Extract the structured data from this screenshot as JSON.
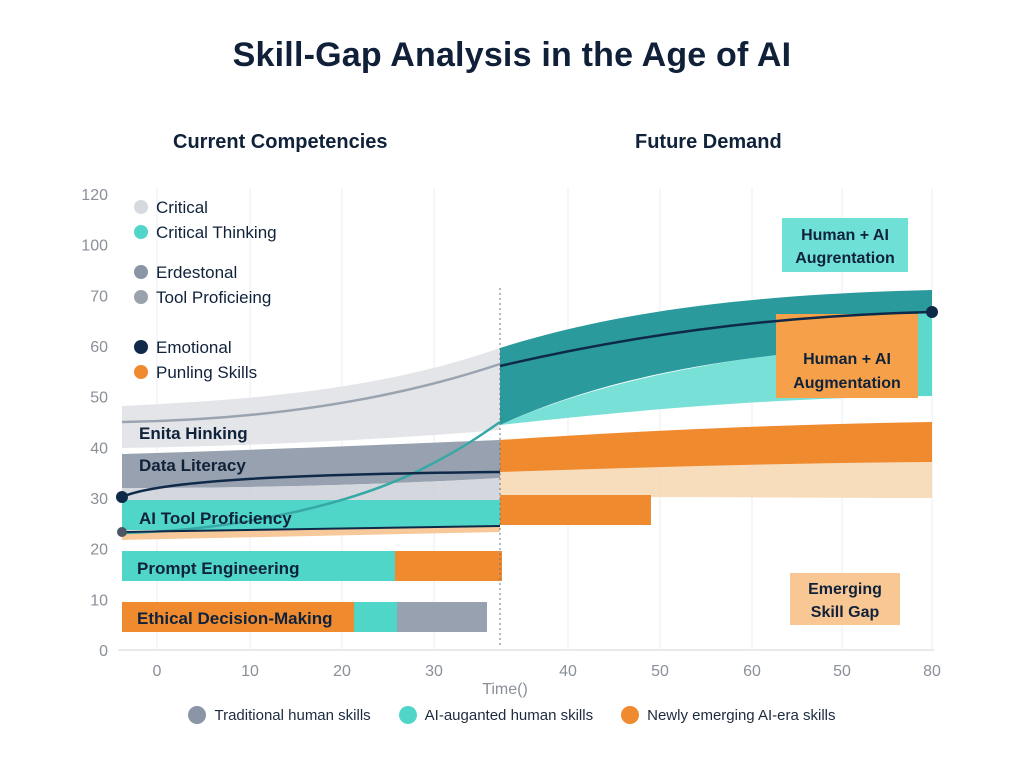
{
  "title": "Skill-Gap Analysis in the Age of AI",
  "subtitles": {
    "left": "Current Competencies",
    "right": "Future Demand"
  },
  "colors": {
    "traditional": "#8a95a6",
    "augmented": "#4fd6c9",
    "emerging": "#f08a2e",
    "navy": "#0f2a48",
    "teal_dark": "#2a9a9c",
    "grid": "#e6e8ec",
    "axis_text": "#8a8f98"
  },
  "chart_data": {
    "type": "area",
    "xlabel": "Time()",
    "ylabel": "",
    "x_ticks": [
      "0",
      "10",
      "20",
      "30",
      "40",
      "50",
      "60",
      "80"
    ],
    "y_ticks": [
      "0",
      "10",
      "20",
      "30",
      "40",
      "50",
      "60",
      "70",
      "100",
      "120"
    ],
    "inline_legend": [
      {
        "label": "Critical",
        "color": "#d6d9de"
      },
      {
        "label": "Critical Thinking",
        "color": "#4fd6c9"
      },
      {
        "label": "Erdestonal",
        "color": "#8a95a6"
      },
      {
        "label": "Tool Proficieing",
        "color": "#9aa2ae"
      },
      {
        "label": "Emotional",
        "color": "#0f2a48"
      },
      {
        "label": "Punling Skills",
        "color": "#f08a2e"
      }
    ],
    "skill_bars": [
      {
        "label": "Enita Hinking",
        "y": 43
      },
      {
        "label": "Data Literacy",
        "y": 37
      },
      {
        "label": "AI Tool Proficiency",
        "y": 27
      },
      {
        "label": "Prompt Engineering",
        "y": 17
      },
      {
        "label": "Ethical Decision-Making",
        "y": 7
      }
    ],
    "annotations": [
      {
        "text": "Human + AI Augrentation",
        "style": "augmented"
      },
      {
        "text": "Human + AI Augmentation",
        "style": "emerging"
      },
      {
        "text": "Emerging Skill Gap",
        "style": "emerging-light"
      }
    ],
    "series": [
      {
        "name": "Traditional human skills",
        "color": "#8a95a6"
      },
      {
        "name": "AI-auganted human skills",
        "color": "#4fd6c9"
      },
      {
        "name": "Newly emerging AI-era skills",
        "color": "#f08a2e"
      }
    ],
    "line_endpoints": {
      "start": 30,
      "end": 67
    }
  }
}
